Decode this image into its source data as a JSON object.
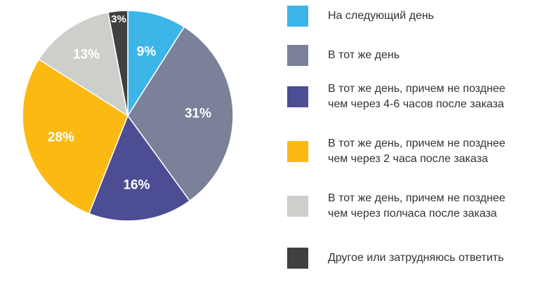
{
  "chart_data": {
    "type": "pie",
    "start_angle_deg": 0,
    "direction": "clockwise",
    "slices": [
      {
        "label": "На следующий день",
        "value": 9,
        "value_label": "9%",
        "color": "#3cb5e8"
      },
      {
        "label": "В тот же день",
        "value": 31,
        "value_label": "31%",
        "color": "#7b8199"
      },
      {
        "label": "В тот же день, причем не позднее\nчем через 4-6 часов после заказа",
        "value": 16,
        "value_label": "16%",
        "color": "#4d4d94"
      },
      {
        "label": "В тот же день, причем не позднее\nчем через 2 часа после заказа",
        "value": 28,
        "value_label": "28%",
        "color": "#fcb912"
      },
      {
        "label": "В тот же день, причем не позднее\nчем через полчаса после заказа",
        "value": 13,
        "value_label": "13%",
        "color": "#cdcfcb"
      },
      {
        "label": "Другое или затрудняюсь ответить",
        "value": 3,
        "value_label": "3%",
        "color": "#404040"
      }
    ],
    "legend_position": "right"
  }
}
